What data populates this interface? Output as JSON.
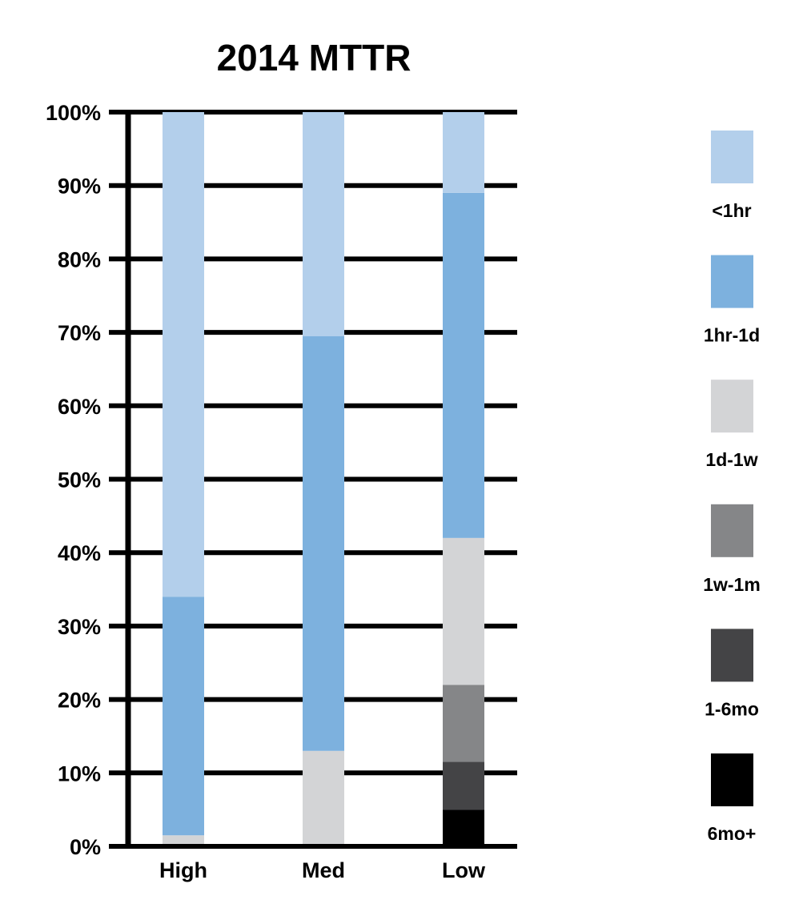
{
  "chart_data": {
    "type": "bar",
    "stacked": true,
    "title": "2014 MTTR",
    "xlabel": "",
    "ylabel": "",
    "categories": [
      "High",
      "Med",
      "Low"
    ],
    "ylim": [
      0,
      100
    ],
    "yticks": [
      0,
      10,
      20,
      30,
      40,
      50,
      60,
      70,
      80,
      90,
      100
    ],
    "ytick_labels": [
      "0%",
      "10%",
      "20%",
      "30%",
      "40%",
      "50%",
      "60%",
      "70%",
      "80%",
      "90%",
      "100%"
    ],
    "grid": true,
    "legend_position": "right",
    "series": [
      {
        "name": "6mo+",
        "color": "#000000",
        "values": [
          0,
          0,
          5
        ]
      },
      {
        "name": "1-6mo",
        "color": "#444446",
        "values": [
          0,
          0,
          6.5
        ]
      },
      {
        "name": "1w-1m",
        "color": "#858688",
        "values": [
          0,
          0,
          10.5
        ]
      },
      {
        "name": "1d-1w",
        "color": "#d3d4d6",
        "values": [
          1.5,
          13,
          20
        ]
      },
      {
        "name": "1hr-1d",
        "color": "#7db1de",
        "values": [
          32.5,
          56.5,
          47
        ]
      },
      {
        "name": "<1hr",
        "color": "#b3cfeb",
        "values": [
          66,
          30.5,
          11
        ]
      }
    ],
    "legend_order": [
      "<1hr",
      "1hr-1d",
      "1d-1w",
      "1w-1m",
      "1-6mo",
      "6mo+"
    ]
  }
}
